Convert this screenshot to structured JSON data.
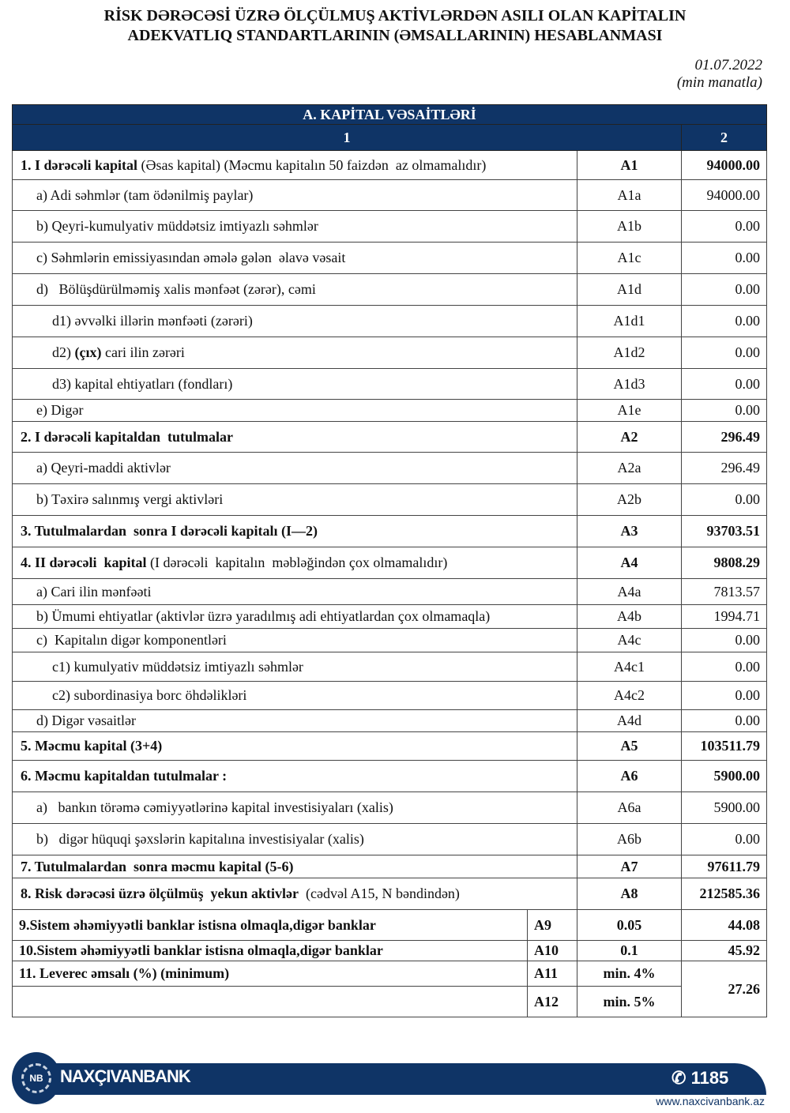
{
  "title_line1": "RİSK DƏRƏCƏSİ ÜZRƏ ÖLÇÜLMUŞ AKTİVLƏRDƏN ASILI OLAN KAPİTALIN",
  "title_line2": "ADEKVATLIQ STANDARTLARININ (ƏMSALLARININ) HESABLANMASI",
  "date": "01.07.2022",
  "unit": "(min manatla)",
  "section_title": "A. KAPİTAL VƏSAİTLƏRİ",
  "col1": "1",
  "col2": "2",
  "rows": [
    {
      "bold": "1. I dərəcəli kapital",
      "text": " (Əsas kapital) (Məcmu kapitalın 50 faizdən  az olmamalıdır)",
      "code": "A1",
      "value": "94000.00",
      "strong": true,
      "indent": 0,
      "h": 37
    },
    {
      "text": "a) Adi səhmlər (tam ödənilmiş paylar)",
      "code": "A1a",
      "value": "94000.00",
      "indent": 1,
      "h": 39
    },
    {
      "text": "b) Qeyri-kumulyativ müddətsiz imtiyazlı səhmlər",
      "code": "A1b",
      "value": "0.00",
      "indent": 1,
      "h": 40
    },
    {
      "text": "c) Səhmlərin emissiyasından əmələ gələn  əlavə vəsait",
      "code": "A1c",
      "value": "0.00",
      "indent": 1,
      "h": 40
    },
    {
      "text": "d)   Bölüşdürülməmiş xalis mənfəət (zərər), cəmi",
      "code": "A1d",
      "value": "0.00",
      "indent": 1,
      "h": 40
    },
    {
      "text": "d1) əvvəlki illərin mənfəəti (zərəri)",
      "code": "A1d1",
      "value": "0.00",
      "indent": 2,
      "h": 40
    },
    {
      "pre": "d2) ",
      "bold": "(çıx)",
      "text": " cari ilin zərəri",
      "code": "A1d2",
      "value": "0.00",
      "indent": 2,
      "h": 40
    },
    {
      "text": "d3) kapital ehtiyatları (fondları)",
      "code": "A1d3",
      "value": "0.00",
      "indent": 2,
      "h": 39
    },
    {
      "text": "e) Digər",
      "code": "A1e",
      "value": "0.00",
      "indent": 1,
      "h": 28
    },
    {
      "bold": "2. I dərəcəli kapitaldan  tutulmalar",
      "code": "A2",
      "value": "296.49",
      "strong": true,
      "indent": 0,
      "h": 39
    },
    {
      "text": "a) Qeyri-maddi aktivlər",
      "code": "A2a",
      "value": "296.49",
      "indent": 1,
      "h": 40
    },
    {
      "text": "b) Təxirə salınmış vergi aktivləri",
      "code": "A2b",
      "value": "0.00",
      "indent": 1,
      "h": 40
    },
    {
      "bold": "3. Tutulmalardan  sonra I dərəcəli kapitalı (I—2)",
      "code": "A3",
      "value": "93703.51",
      "strong": true,
      "indent": 0,
      "h": 40
    },
    {
      "bold": "4. II dərəcəli  kapital",
      "text": " (I dərəcəli  kapitalın  məbləğindən çox olmamalıdır)",
      "code": "A4",
      "value": "9808.29",
      "strong": true,
      "indent": 0,
      "h": 40
    },
    {
      "text": "a) Cari ilin mənfəəti",
      "code": "A4a",
      "value": "7813.57",
      "indent": 1,
      "h": 33
    },
    {
      "text": "b) Ümumi ehtiyatlar (aktivlər üzrə yaradılmış adi ehtiyatlardan çox olmamaqla)",
      "code": "A4b",
      "value": "1994.71",
      "indent": 1,
      "h": 30
    },
    {
      "text": "c)  Kapitalın digər komponentləri",
      "code": "A4c",
      "value": "0.00",
      "indent": 1,
      "h": 30
    },
    {
      "text": "c1) kumulyativ müddətsiz imtiyazlı səhmlər",
      "code": "A4c1",
      "value": "0.00",
      "indent": 2,
      "h": 37
    },
    {
      "text": "c2) subordinasiya borc öhdəlikləri",
      "code": "A4c2",
      "value": "0.00",
      "indent": 2,
      "h": 36
    },
    {
      "text": "d) Digər vəsaitlər",
      "code": "A4d",
      "value": "0.00",
      "indent": 1,
      "h": 28
    },
    {
      "bold": "5. Məcmu kapital (3+4)",
      "code": "A5",
      "value": "103511.79",
      "strong": true,
      "indent": 0,
      "h": 36
    },
    {
      "bold": "6. Məcmu kapitaldan tutulmalar :",
      "code": "A6",
      "value": "5900.00",
      "strong": true,
      "indent": 0,
      "h": 40
    },
    {
      "text": "a)   bankın törəmə cəmiyyətlərinə kapital investisiyaları (xalis)",
      "code": "A6a",
      "value": "5900.00",
      "indent": 1,
      "h": 40
    },
    {
      "text": "b)   digər hüquqi şəxslərin kapitalına investisiyalar (xalis)",
      "code": "A6b",
      "value": "0.00",
      "indent": 1,
      "h": 40
    },
    {
      "bold": "7. Tutulmalardan  sonra məcmu kapital (5-6)",
      "code": "A7",
      "value": "97611.79",
      "strong": true,
      "indent": 0,
      "h": 29
    },
    {
      "bold": "8. Risk dərəcəsi üzrə ölçülmüş  yekun aktivlər",
      "text": "  (cədvəl A15, N bəndindən)",
      "code": "A8",
      "value": "212585.36",
      "strong": true,
      "indent": 0,
      "h": 40
    }
  ],
  "ratios": [
    {
      "label": "9.Sistem əhəmiyyətli banklar istisna olmaqla,digər banklar",
      "code": "A9",
      "norm": "0.05",
      "value": "44.08"
    },
    {
      "label": "10.Sistem əhəmiyyətli banklar istisna olmaqla,digər banklar",
      "code": "A10",
      "norm": "0.1",
      "value": "45.92"
    },
    {
      "label": "11. Leverec əmsalı (%) (minimum)",
      "code": "A11",
      "norm": "min. 4%",
      "value": "27.26"
    },
    {
      "label": "",
      "code": "A12",
      "norm": "min. 5%"
    }
  ],
  "footer": {
    "brand": "NAXÇIVANBANK",
    "logo": "NB",
    "phone": "1185",
    "website": "www.naxcivanbank.az",
    "color": "#0f3466"
  }
}
